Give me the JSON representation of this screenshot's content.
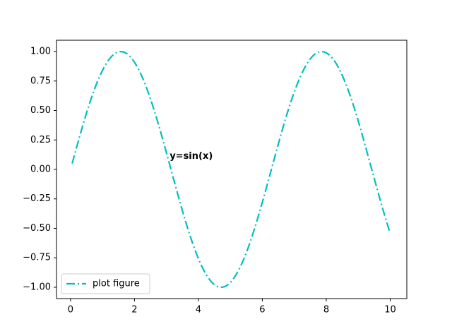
{
  "chart_data": {
    "type": "line",
    "x": [
      0.05,
      0.25,
      0.5,
      0.75,
      1.0,
      1.25,
      1.5,
      1.75,
      2.0,
      2.25,
      2.5,
      2.75,
      3.0,
      3.25,
      3.5,
      3.75,
      4.0,
      4.25,
      4.5,
      4.75,
      5.0,
      5.25,
      5.5,
      5.75,
      6.0,
      6.25,
      6.5,
      6.75,
      7.0,
      7.25,
      7.5,
      7.75,
      8.0,
      8.25,
      8.5,
      8.75,
      9.0,
      9.25,
      9.5,
      9.75,
      10.0
    ],
    "series": [
      {
        "name": "plot figure",
        "color": "#00bfbf",
        "dash": "dashdot",
        "values": [
          0.05,
          0.247,
          0.479,
          0.682,
          0.841,
          0.949,
          0.997,
          0.984,
          0.909,
          0.778,
          0.598,
          0.382,
          0.141,
          -0.108,
          -0.351,
          -0.572,
          -0.757,
          -0.895,
          -0.978,
          -0.999,
          -0.959,
          -0.859,
          -0.706,
          -0.508,
          -0.279,
          -0.033,
          0.215,
          0.451,
          0.657,
          0.823,
          0.938,
          0.995,
          0.989,
          0.923,
          0.798,
          0.625,
          0.412,
          0.172,
          -0.075,
          -0.319,
          -0.544
        ]
      }
    ],
    "xlim": [
      -0.44,
      10.52
    ],
    "xticks": [
      0,
      2,
      4,
      6,
      8,
      10
    ],
    "ylim": [
      -1.096,
      1.096
    ],
    "yticks": [
      {
        "value": -1,
        "label": "−1.00"
      },
      {
        "value": -0.75,
        "label": "−0.75"
      },
      {
        "value": -0.5,
        "label": "−0.50"
      },
      {
        "value": -0.25,
        "label": "−0.25"
      },
      {
        "value": 0,
        "label": "0.00"
      },
      {
        "value": 0.25,
        "label": "0.25"
      },
      {
        "value": 0.5,
        "label": "0.50"
      },
      {
        "value": 0.75,
        "label": "0.75"
      },
      {
        "value": 1,
        "label": "1.00"
      }
    ],
    "annotation": {
      "text": "y=sin(x)",
      "x": 3.1,
      "y": 0.11,
      "color": "#0000cc"
    },
    "legend": "lower left",
    "grid": false
  }
}
